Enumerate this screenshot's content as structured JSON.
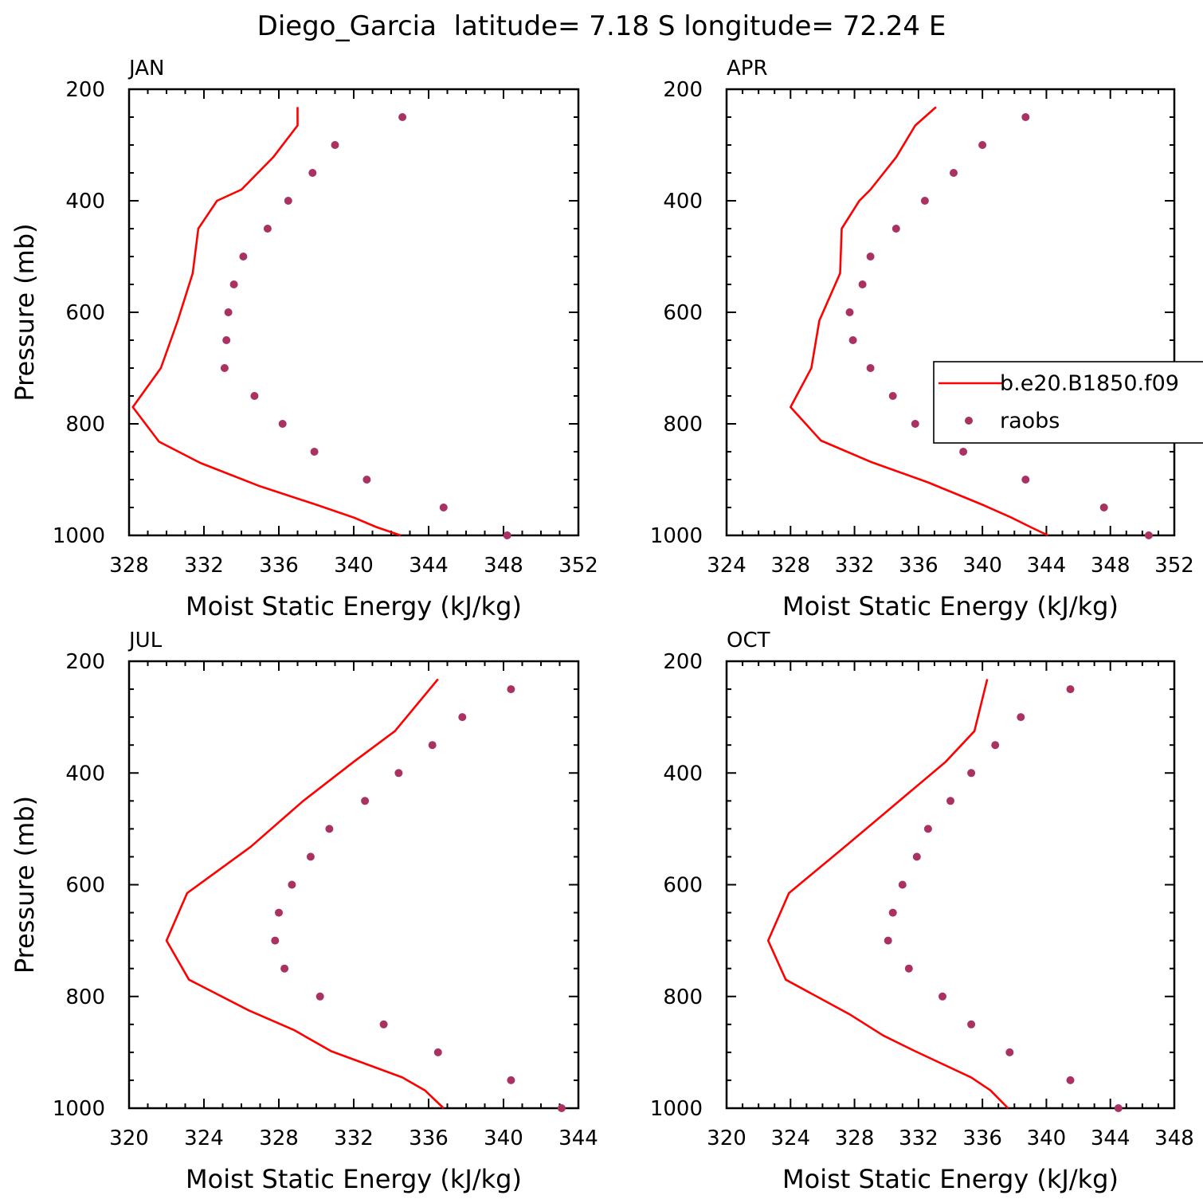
{
  "figure": {
    "title": "Diego_Garcia  latitude= 7.18 S longitude= 72.24 E"
  },
  "legend": {
    "placement": "right-middle of APR panel (clipped at figure edge)",
    "entries": [
      {
        "label": "b.e20.B1850.f09",
        "marker": "line",
        "color": "#ff0000"
      },
      {
        "label": "raobs",
        "marker": "dot",
        "color": "#a93263"
      }
    ]
  },
  "chart_data": [
    {
      "type": "line",
      "panel": "JAN",
      "title": "JAN",
      "xlabel": "Moist Static Energy (kJ/kg)",
      "ylabel": "Pressure (mb)",
      "xlim": [
        328,
        352
      ],
      "xticks": [
        328,
        332,
        336,
        340,
        344,
        348,
        352
      ],
      "ylim": [
        1000,
        200
      ],
      "yticks": [
        200,
        400,
        600,
        800,
        1000
      ],
      "y_reversed": true,
      "grid": false,
      "series": [
        {
          "name": "b.e20.B1850.f09",
          "kind": "line",
          "color": "#ff0000",
          "points": [
            [
              342.5,
              1000
            ],
            [
              341.2,
              985
            ],
            [
              340.0,
              968
            ],
            [
              338.0,
              945
            ],
            [
              335.0,
              912
            ],
            [
              331.8,
              870
            ],
            [
              329.6,
              832
            ],
            [
              328.2,
              770
            ],
            [
              329.7,
              700
            ],
            [
              330.6,
              615
            ],
            [
              331.4,
              530
            ],
            [
              331.7,
              450
            ],
            [
              332.7,
              400
            ],
            [
              334.0,
              380
            ],
            [
              335.7,
              322
            ],
            [
              337.0,
              265
            ],
            [
              337.0,
              232
            ]
          ]
        },
        {
          "name": "raobs",
          "kind": "scatter",
          "color": "#a93263",
          "points": [
            [
              348.2,
              1000
            ],
            [
              344.8,
              950
            ],
            [
              340.7,
              900
            ],
            [
              337.9,
              850
            ],
            [
              336.2,
              800
            ],
            [
              334.7,
              750
            ],
            [
              333.1,
              700
            ],
            [
              333.2,
              650
            ],
            [
              333.3,
              600
            ],
            [
              333.6,
              550
            ],
            [
              334.1,
              500
            ],
            [
              335.4,
              450
            ],
            [
              336.5,
              400
            ],
            [
              337.8,
              350
            ],
            [
              339.0,
              300
            ],
            [
              342.6,
              250
            ]
          ]
        }
      ]
    },
    {
      "type": "line",
      "panel": "APR",
      "title": "APR",
      "xlabel": "Moist Static Energy (kJ/kg)",
      "ylabel": "",
      "xlim": [
        324,
        352
      ],
      "xticks": [
        324,
        328,
        332,
        336,
        340,
        344,
        348,
        352
      ],
      "ylim": [
        1000,
        200
      ],
      "yticks": [
        200,
        400,
        600,
        800,
        1000
      ],
      "y_reversed": true,
      "grid": false,
      "series": [
        {
          "name": "b.e20.B1850.f09",
          "kind": "line",
          "color": "#ff0000",
          "points": [
            [
              344.1,
              1000
            ],
            [
              343.0,
              985
            ],
            [
              341.8,
              968
            ],
            [
              340.0,
              945
            ],
            [
              336.6,
              905
            ],
            [
              333.0,
              868
            ],
            [
              329.9,
              830
            ],
            [
              328.0,
              770
            ],
            [
              329.3,
              700
            ],
            [
              329.8,
              615
            ],
            [
              331.1,
              530
            ],
            [
              331.2,
              450
            ],
            [
              332.3,
              400
            ],
            [
              333.0,
              380
            ],
            [
              334.6,
              322
            ],
            [
              335.8,
              265
            ],
            [
              337.1,
              232
            ]
          ]
        },
        {
          "name": "raobs",
          "kind": "scatter",
          "color": "#a93263",
          "points": [
            [
              350.4,
              1000
            ],
            [
              347.6,
              950
            ],
            [
              342.7,
              900
            ],
            [
              338.8,
              850
            ],
            [
              335.8,
              800
            ],
            [
              334.4,
              750
            ],
            [
              333.0,
              700
            ],
            [
              331.9,
              650
            ],
            [
              331.7,
              600
            ],
            [
              332.5,
              550
            ],
            [
              333.0,
              500
            ],
            [
              334.6,
              450
            ],
            [
              336.4,
              400
            ],
            [
              338.2,
              350
            ],
            [
              340.0,
              300
            ],
            [
              342.7,
              250
            ]
          ]
        }
      ]
    },
    {
      "type": "line",
      "panel": "JUL",
      "title": "JUL",
      "xlabel": "Moist Static Energy (kJ/kg)",
      "ylabel": "Pressure (mb)",
      "xlim": [
        320,
        344
      ],
      "xticks": [
        320,
        324,
        328,
        332,
        336,
        340,
        344
      ],
      "ylim": [
        1000,
        200
      ],
      "yticks": [
        200,
        400,
        600,
        800,
        1000
      ],
      "y_reversed": true,
      "grid": false,
      "series": [
        {
          "name": "b.e20.B1850.f09",
          "kind": "line",
          "color": "#ff0000",
          "points": [
            [
              336.8,
              1000
            ],
            [
              335.8,
              968
            ],
            [
              334.6,
              945
            ],
            [
              330.8,
              898
            ],
            [
              328.8,
              860
            ],
            [
              326.4,
              825
            ],
            [
              323.2,
              770
            ],
            [
              322.0,
              700
            ],
            [
              323.1,
              615
            ],
            [
              326.5,
              532
            ],
            [
              329.3,
              450
            ],
            [
              332.0,
              380
            ],
            [
              334.2,
              325
            ],
            [
              336.5,
              232
            ]
          ]
        },
        {
          "name": "raobs",
          "kind": "scatter",
          "color": "#a93263",
          "points": [
            [
              343.1,
              1000
            ],
            [
              340.4,
              950
            ],
            [
              336.5,
              900
            ],
            [
              333.6,
              850
            ],
            [
              330.2,
              800
            ],
            [
              328.3,
              750
            ],
            [
              327.8,
              700
            ],
            [
              328.0,
              650
            ],
            [
              328.7,
              600
            ],
            [
              329.7,
              550
            ],
            [
              330.7,
              500
            ],
            [
              332.6,
              450
            ],
            [
              334.4,
              400
            ],
            [
              336.2,
              350
            ],
            [
              337.8,
              300
            ],
            [
              340.4,
              250
            ]
          ]
        }
      ]
    },
    {
      "type": "line",
      "panel": "OCT",
      "title": "OCT",
      "xlabel": "Moist Static Energy (kJ/kg)",
      "ylabel": "",
      "xlim": [
        320,
        348
      ],
      "xticks": [
        320,
        324,
        328,
        332,
        336,
        340,
        344,
        348
      ],
      "ylim": [
        1000,
        200
      ],
      "yticks": [
        200,
        400,
        600,
        800,
        1000
      ],
      "y_reversed": true,
      "grid": false,
      "series": [
        {
          "name": "b.e20.B1850.f09",
          "kind": "line",
          "color": "#ff0000",
          "points": [
            [
              337.6,
              1000
            ],
            [
              336.5,
              968
            ],
            [
              335.3,
              945
            ],
            [
              331.8,
              898
            ],
            [
              329.8,
              870
            ],
            [
              327.7,
              832
            ],
            [
              323.7,
              770
            ],
            [
              322.6,
              700
            ],
            [
              323.9,
              615
            ],
            [
              327.4,
              532
            ],
            [
              330.8,
              450
            ],
            [
              333.7,
              380
            ],
            [
              335.5,
              325
            ],
            [
              336.3,
              232
            ]
          ]
        },
        {
          "name": "raobs",
          "kind": "scatter",
          "color": "#a93263",
          "points": [
            [
              344.5,
              1000
            ],
            [
              341.5,
              950
            ],
            [
              337.7,
              900
            ],
            [
              335.3,
              850
            ],
            [
              333.5,
              800
            ],
            [
              331.4,
              750
            ],
            [
              330.1,
              700
            ],
            [
              330.4,
              650
            ],
            [
              331.0,
              600
            ],
            [
              331.9,
              550
            ],
            [
              332.6,
              500
            ],
            [
              334.0,
              450
            ],
            [
              335.3,
              400
            ],
            [
              336.8,
              350
            ],
            [
              338.4,
              300
            ],
            [
              341.5,
              250
            ]
          ]
        }
      ]
    }
  ]
}
